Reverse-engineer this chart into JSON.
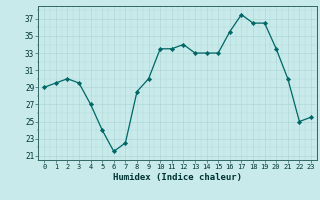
{
  "x": [
    0,
    1,
    2,
    3,
    4,
    5,
    6,
    7,
    8,
    9,
    10,
    11,
    12,
    13,
    14,
    15,
    16,
    17,
    18,
    19,
    20,
    21,
    22,
    23
  ],
  "y": [
    29,
    29.5,
    30,
    29.5,
    27,
    24,
    21.5,
    22.5,
    28.5,
    30,
    33.5,
    33.5,
    34,
    33,
    33,
    33,
    35.5,
    37.5,
    36.5,
    36.5,
    33.5,
    30,
    25,
    25.5
  ],
  "line_color": "#006666",
  "marker_color": "#006666",
  "bg_color": "#c8eaea",
  "grid_major_color": "#b0d8d8",
  "xlabel": "Humidex (Indice chaleur)",
  "xlabel_fontsize": 6.5,
  "xlim": [
    -0.5,
    23.5
  ],
  "ylim": [
    20.5,
    38.5
  ],
  "yticks": [
    21,
    23,
    25,
    27,
    29,
    31,
    33,
    35,
    37
  ],
  "xticks": [
    0,
    1,
    2,
    3,
    4,
    5,
    6,
    7,
    8,
    9,
    10,
    11,
    12,
    13,
    14,
    15,
    16,
    17,
    18,
    19,
    20,
    21,
    22,
    23
  ]
}
